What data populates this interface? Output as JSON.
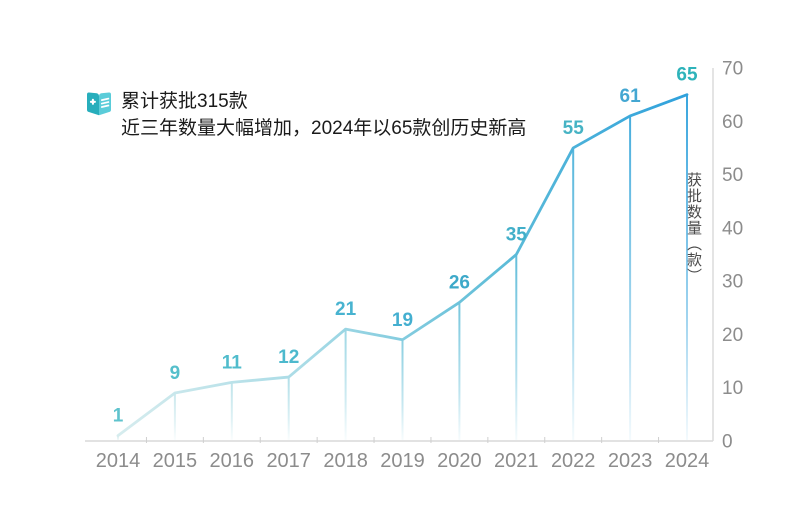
{
  "header": {
    "icon": "registry-book-icon"
  },
  "chart_data": {
    "type": "line",
    "title": "累计获批315款",
    "subtitle": "近三年数量大幅增加，2024年以65款创历史新高",
    "categories": [
      "2014",
      "2015",
      "2016",
      "2017",
      "2018",
      "2019",
      "2020",
      "2021",
      "2022",
      "2023",
      "2024"
    ],
    "values": [
      1,
      9,
      11,
      12,
      21,
      19,
      26,
      35,
      55,
      61,
      65
    ],
    "ylabel": "获批数量（款）",
    "ylim": [
      0,
      70
    ],
    "ytick_labels": [
      "0",
      "10",
      "20",
      "30",
      "40",
      "50",
      "60",
      "70"
    ],
    "yticks": [
      0,
      10,
      20,
      30,
      40,
      50,
      60,
      70
    ],
    "yaxis_side": "right",
    "grid": false,
    "legend": null,
    "data_labels_shown": true
  },
  "colors": {
    "title_text": "#1a1a1a",
    "axis_line": "#d9d9d9",
    "tick_mark": "#cfcfcf",
    "tick_label": "#8c8c8c",
    "axis_name": "#4a4a4a",
    "line_gradient": [
      "#d6ecee",
      "#a8dbe6",
      "#5fbdd8",
      "#2fa1dc"
    ],
    "data_label_colors": [
      "#5fc3cd",
      "#55bfcb",
      "#50bccc",
      "#4db9cd",
      "#48b3d0",
      "#44afd0",
      "#3da9c9",
      "#42afc9",
      "#46b3c4",
      "#44a7d2",
      "#2eb3ba"
    ],
    "icon_dark": "#27aebc",
    "icon_light": "#5accd9"
  }
}
